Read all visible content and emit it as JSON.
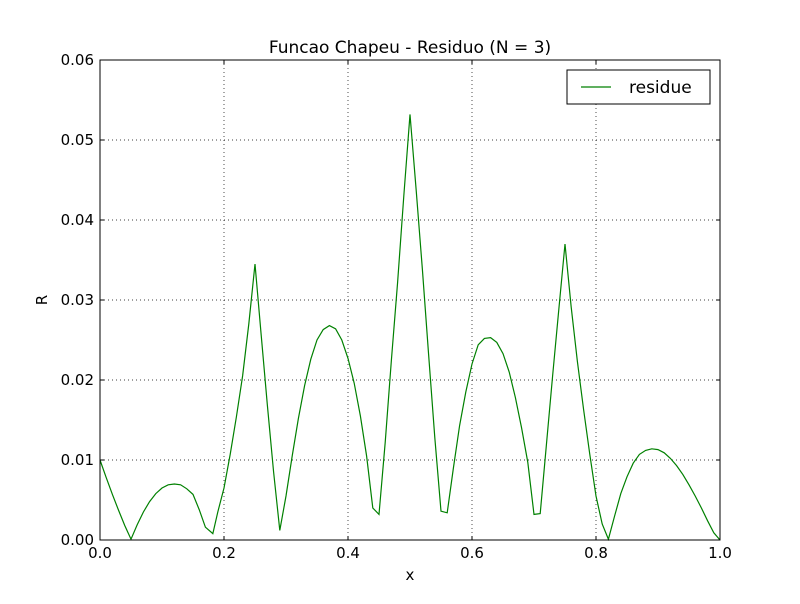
{
  "chart_data": {
    "type": "line",
    "title": "Funcao Chapeu - Residuo (N = 3)",
    "xlabel": "x",
    "ylabel": "R",
    "xlim": [
      0.0,
      1.0
    ],
    "ylim": [
      0.0,
      0.06
    ],
    "xticks": [
      0.0,
      0.2,
      0.4,
      0.6,
      0.8,
      1.0
    ],
    "xtick_labels": [
      "0.0",
      "0.2",
      "0.4",
      "0.6",
      "0.8",
      "1.0"
    ],
    "yticks": [
      0.0,
      0.01,
      0.02,
      0.03,
      0.04,
      0.05,
      0.06
    ],
    "ytick_labels": [
      "0.00",
      "0.01",
      "0.02",
      "0.03",
      "0.04",
      "0.05",
      "0.06"
    ],
    "grid": true,
    "legend_position": "top-right",
    "series": [
      {
        "name": "residue",
        "color": "#008000",
        "x": [
          0.0,
          0.01,
          0.02,
          0.03,
          0.04,
          0.05,
          0.06,
          0.07,
          0.08,
          0.09,
          0.1,
          0.11,
          0.12,
          0.13,
          0.14,
          0.15,
          0.16,
          0.17,
          0.182,
          0.19,
          0.2,
          0.21,
          0.22,
          0.23,
          0.24,
          0.25,
          0.26,
          0.27,
          0.28,
          0.29,
          0.3,
          0.31,
          0.32,
          0.33,
          0.34,
          0.35,
          0.36,
          0.37,
          0.38,
          0.39,
          0.4,
          0.41,
          0.42,
          0.43,
          0.44,
          0.45,
          0.46,
          0.47,
          0.48,
          0.49,
          0.5,
          0.51,
          0.52,
          0.53,
          0.54,
          0.55,
          0.56,
          0.57,
          0.58,
          0.59,
          0.6,
          0.61,
          0.62,
          0.63,
          0.64,
          0.65,
          0.66,
          0.67,
          0.68,
          0.69,
          0.7,
          0.71,
          0.72,
          0.73,
          0.74,
          0.75,
          0.76,
          0.77,
          0.78,
          0.79,
          0.8,
          0.81,
          0.82,
          0.83,
          0.84,
          0.85,
          0.86,
          0.87,
          0.88,
          0.89,
          0.9,
          0.91,
          0.92,
          0.93,
          0.94,
          0.95,
          0.96,
          0.97,
          0.98,
          0.99,
          1.0
        ],
        "y": [
          0.01,
          0.0078,
          0.0057,
          0.0037,
          0.0018,
          0.0001,
          0.0019,
          0.0035,
          0.0048,
          0.0058,
          0.0065,
          0.0069,
          0.007,
          0.0069,
          0.0064,
          0.0057,
          0.0038,
          0.0016,
          0.0008,
          0.0035,
          0.0065,
          0.0107,
          0.0154,
          0.0205,
          0.027,
          0.0345,
          0.0256,
          0.0168,
          0.0085,
          0.0012,
          0.0055,
          0.0105,
          0.0152,
          0.0193,
          0.0226,
          0.025,
          0.0263,
          0.0268,
          0.0264,
          0.025,
          0.0227,
          0.0196,
          0.0155,
          0.0105,
          0.004,
          0.0032,
          0.0122,
          0.0225,
          0.0322,
          0.043,
          0.0532,
          0.0437,
          0.0338,
          0.0232,
          0.0128,
          0.0036,
          0.0034,
          0.009,
          0.0143,
          0.0185,
          0.022,
          0.0244,
          0.0252,
          0.0253,
          0.0247,
          0.0233,
          0.021,
          0.0178,
          0.014,
          0.0097,
          0.0032,
          0.0033,
          0.0119,
          0.0205,
          0.0288,
          0.037,
          0.0291,
          0.0223,
          0.0163,
          0.0107,
          0.0055,
          0.002,
          0.0001,
          0.003,
          0.0058,
          0.0079,
          0.0096,
          0.0107,
          0.0112,
          0.0114,
          0.0113,
          0.0109,
          0.0102,
          0.0093,
          0.0082,
          0.0069,
          0.0055,
          0.004,
          0.0024,
          0.0009,
          0.0
        ]
      }
    ]
  }
}
